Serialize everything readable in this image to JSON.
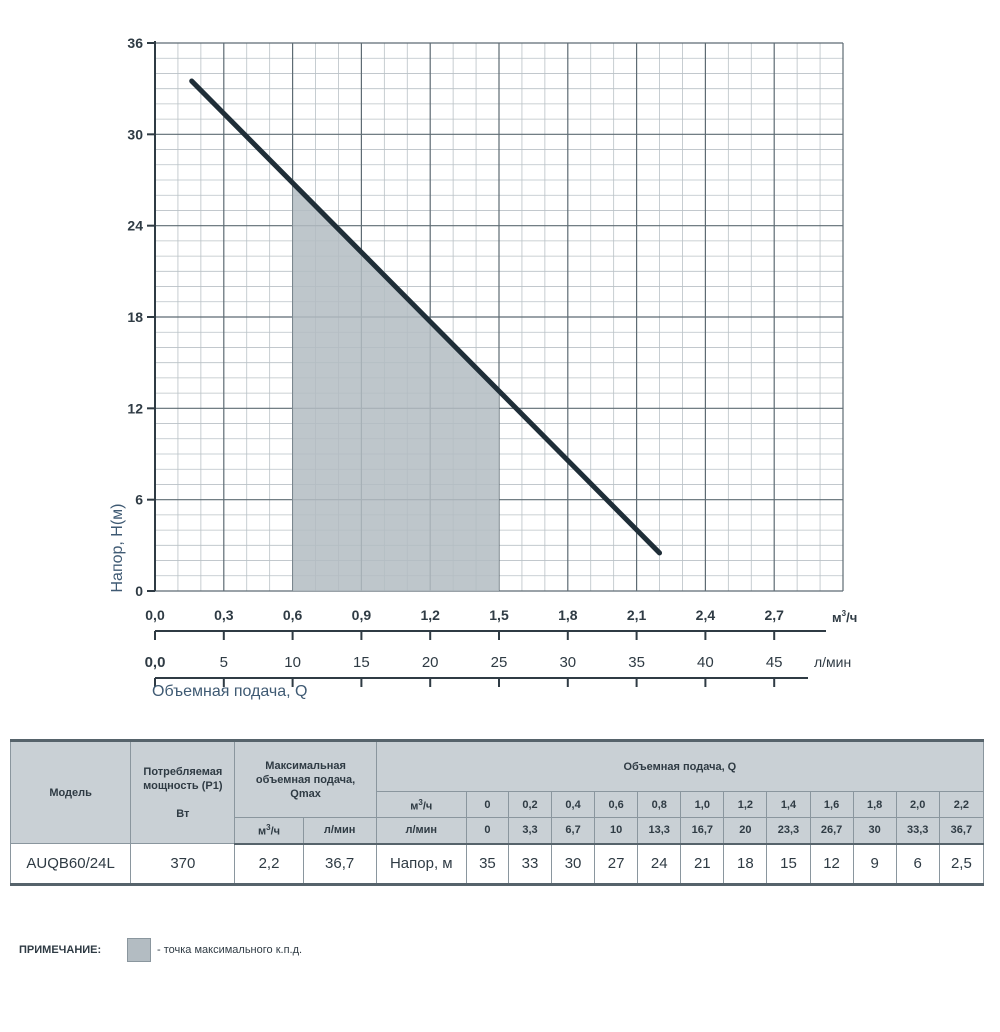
{
  "chart_data": {
    "type": "line",
    "ylabel": "Напор, H(м)",
    "xlabel": "Объемная подача, Q",
    "y_ticks": [
      "0",
      "6",
      "12",
      "18",
      "24",
      "30",
      "36"
    ],
    "ylim": [
      0,
      36
    ],
    "x_ticks_m3h": [
      "0,0",
      "0,3",
      "0,6",
      "0,9",
      "1,2",
      "1,5",
      "1,8",
      "2,1",
      "2,4",
      "2,7"
    ],
    "x_unit_m3h": "м",
    "x_unit_m3h_sup": "3",
    "x_unit_m3h_tail": "/ч",
    "x_ticks_lmin": [
      "0,0",
      "5",
      "10",
      "15",
      "20",
      "25",
      "30",
      "35",
      "40",
      "45"
    ],
    "x_unit_lmin": "л/мин",
    "xlim_m3h": [
      0,
      3.0
    ],
    "grid": true,
    "series": [
      {
        "x_m3h": [
          0.16,
          2.2
        ],
        "y": [
          33.5,
          2.5
        ],
        "color": "#1f2e38"
      }
    ],
    "shaded_region": {
      "x_m3h": [
        0.6,
        1.5
      ],
      "color": "#b3bcc2"
    }
  },
  "table": {
    "col_model": "Модель",
    "col_power_l1": "Потребляемая",
    "col_power_l2": "мощность (P1)",
    "col_power_l3": "Вт",
    "col_qmax_l1": "Максимальная",
    "col_qmax_l2": "объемная подача,",
    "col_qmax_l3": "Qmax",
    "col_q": "Объемная подача, Q",
    "unit_m3h_base": "м",
    "unit_m3h_sup": "3",
    "unit_m3h_tail": "/ч",
    "unit_lmin": "л/мин",
    "flow_m3h": [
      "0",
      "0,2",
      "0,4",
      "0,6",
      "0,8",
      "1,0",
      "1,2",
      "1,4",
      "1,6",
      "1,8",
      "2,0",
      "2,2"
    ],
    "flow_lmin": [
      "0",
      "3,3",
      "6,7",
      "10",
      "13,3",
      "16,7",
      "20",
      "23,3",
      "26,7",
      "30",
      "33,3",
      "36,7"
    ],
    "row": {
      "model": "AUQB60/24L",
      "power": "370",
      "qmax_m3h": "2,2",
      "qmax_lmin": "36,7",
      "head_label": "Напор, м",
      "head": [
        "35",
        "33",
        "30",
        "27",
        "24",
        "21",
        "18",
        "15",
        "12",
        "9",
        "6",
        "2,5"
      ]
    }
  },
  "note": {
    "label": "ПРИМЕЧАНИЕ:",
    "text": "- точка максимального  к.п.д.",
    "swatch_color": "#b3bcc2"
  }
}
